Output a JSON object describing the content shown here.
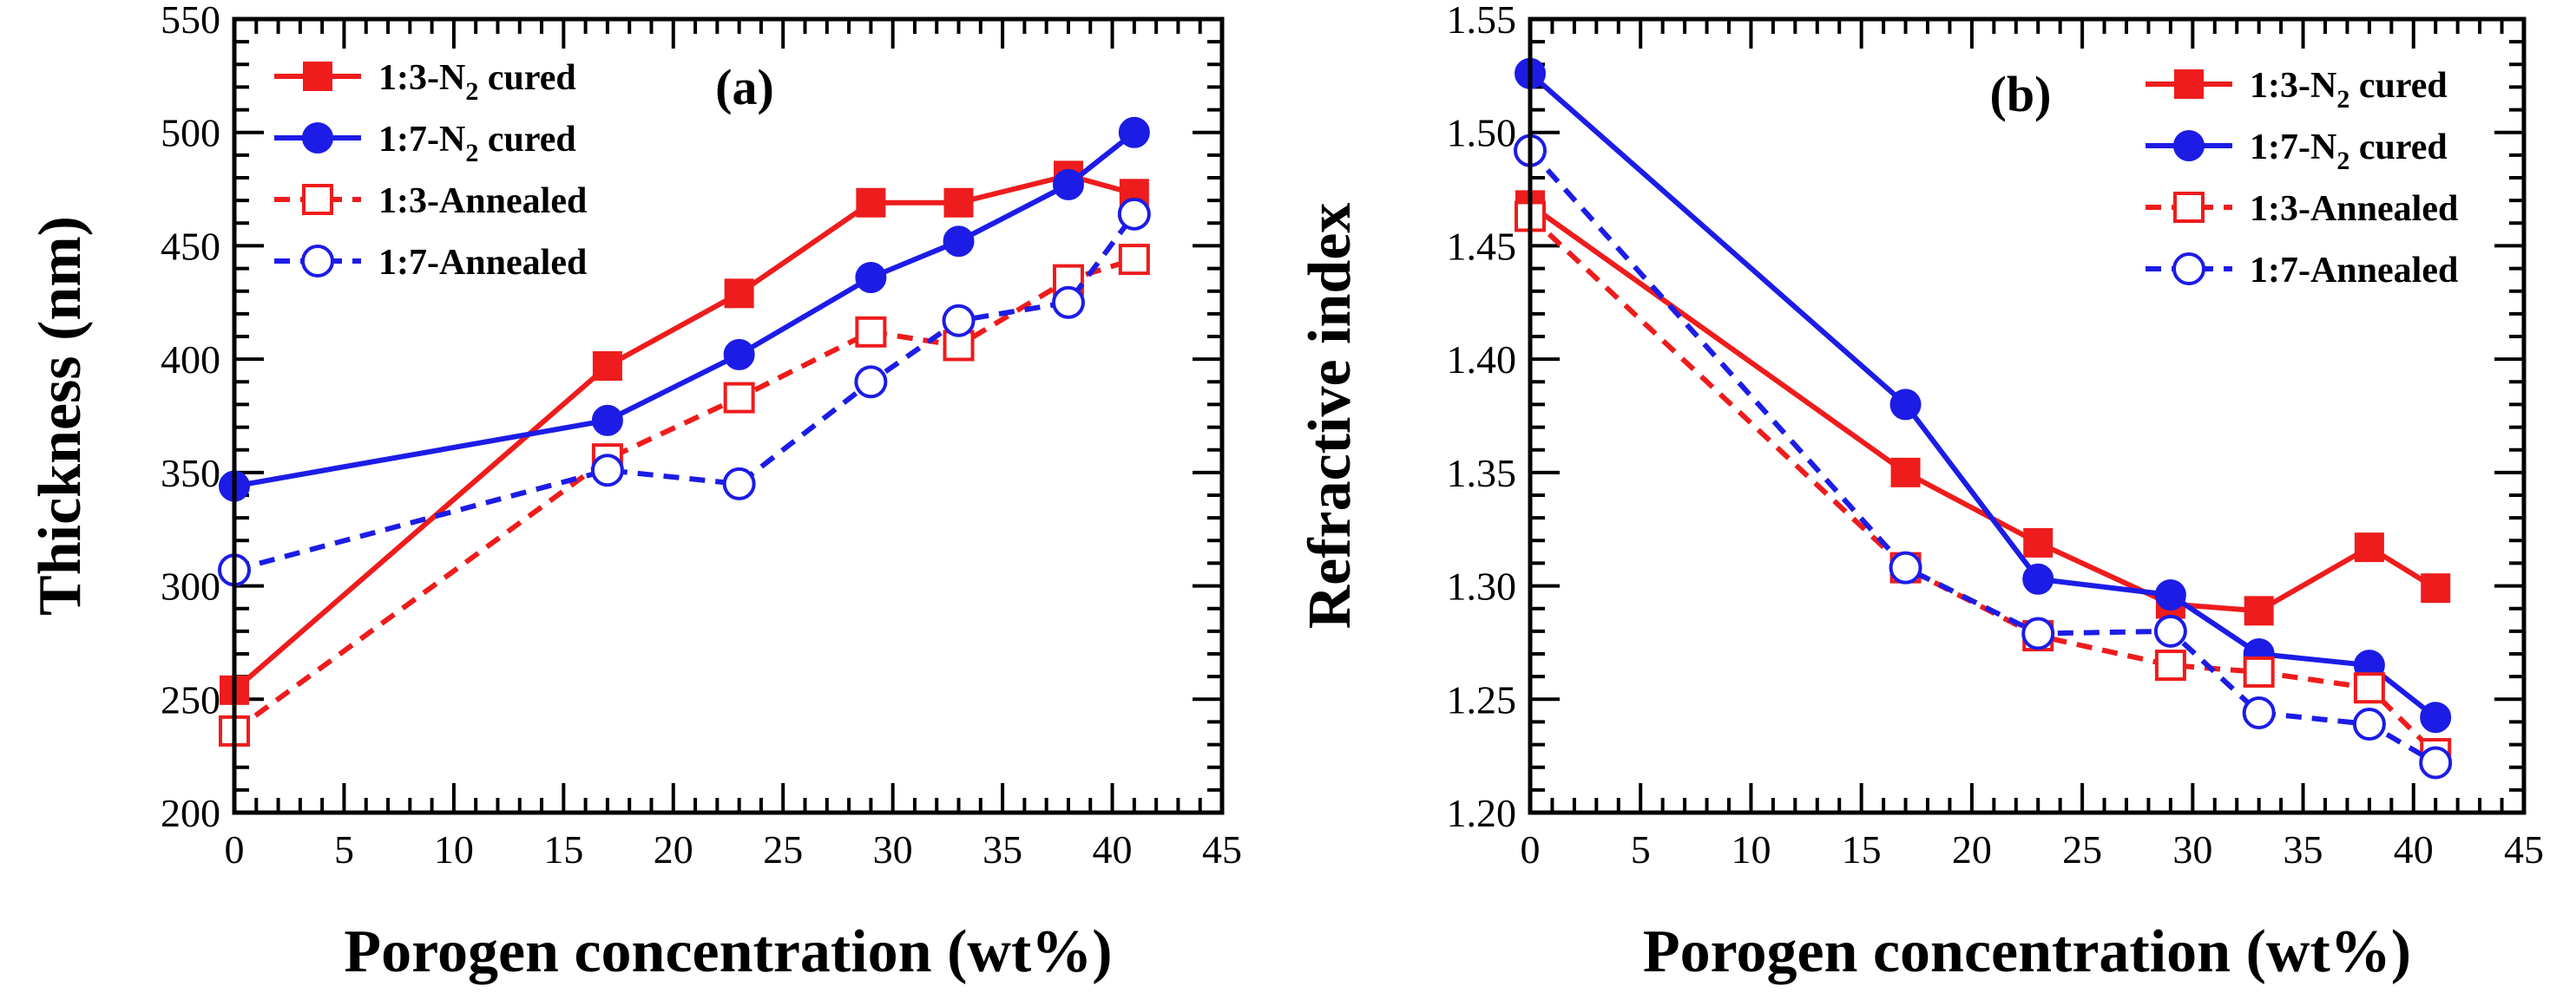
{
  "chart_data": [
    {
      "type": "line",
      "panel_label": "(a)",
      "xlabel": "Porogen concentration (wt%)",
      "ylabel": "Thickness (nm)",
      "xlim": [
        0,
        45
      ],
      "ylim": [
        200,
        550
      ],
      "xticks": [
        0,
        5,
        10,
        15,
        20,
        25,
        30,
        35,
        40,
        45
      ],
      "yticks": [
        200,
        250,
        300,
        350,
        400,
        450,
        500,
        550
      ],
      "grid": false,
      "legend_position": "top-left",
      "series": [
        {
          "name": "1:3-N2 cured",
          "label_main": "1:3-N",
          "label_sub": "2",
          "label_tail": " cured",
          "color": "#ee1c1c",
          "dash": "solid",
          "marker": "filled-square",
          "x": [
            0,
            17,
            23,
            29,
            33,
            38,
            41
          ],
          "y": [
            254,
            397,
            429,
            469,
            469,
            481,
            473
          ]
        },
        {
          "name": "1:7-N2 cured",
          "label_main": "1:7-N",
          "label_sub": "2",
          "label_tail": " cured",
          "color": "#1c1ce6",
          "dash": "solid",
          "marker": "filled-circle",
          "x": [
            0,
            17,
            23,
            29,
            33,
            38,
            41
          ],
          "y": [
            344,
            373,
            402,
            436,
            452,
            477,
            500
          ]
        },
        {
          "name": "1:3-Annealed",
          "label_main": "1:3-Annealed",
          "label_sub": "",
          "label_tail": "",
          "color": "#ee1c1c",
          "dash": "dashed",
          "marker": "open-square",
          "x": [
            0,
            17,
            23,
            29,
            33,
            38,
            41
          ],
          "y": [
            236,
            356,
            383,
            412,
            406,
            435,
            444
          ]
        },
        {
          "name": "1:7-Annealed",
          "label_main": "1:7-Annealed",
          "label_sub": "",
          "label_tail": "",
          "color": "#1c1ce6",
          "dash": "dashed",
          "marker": "open-circle",
          "x": [
            0,
            17,
            23,
            29,
            33,
            38,
            41
          ],
          "y": [
            307,
            351,
            345,
            390,
            417,
            425,
            464
          ]
        }
      ]
    },
    {
      "type": "line",
      "panel_label": "(b)",
      "xlabel": "Porogen concentration (wt%)",
      "ylabel": "Refractive index",
      "xlim": [
        0,
        45
      ],
      "ylim": [
        1.2,
        1.55
      ],
      "xticks": [
        0,
        5,
        10,
        15,
        20,
        25,
        30,
        35,
        40,
        45
      ],
      "yticks": [
        1.2,
        1.25,
        1.3,
        1.35,
        1.4,
        1.45,
        1.5,
        1.55
      ],
      "ytick_labels": [
        "1.20",
        "1.25",
        "1.30",
        "1.35",
        "1.40",
        "1.45",
        "1.50",
        "1.55"
      ],
      "grid": false,
      "legend_position": "top-right",
      "series": [
        {
          "name": "1:3-N2 cured",
          "label_main": "1:3-N",
          "label_sub": "2",
          "label_tail": " cured",
          "color": "#ee1c1c",
          "dash": "solid",
          "marker": "filled-square",
          "x": [
            0,
            17,
            23,
            29,
            33,
            38,
            41
          ],
          "y": [
            1.468,
            1.35,
            1.319,
            1.292,
            1.289,
            1.317,
            1.299
          ]
        },
        {
          "name": "1:7-N2 cured",
          "label_main": "1:7-N",
          "label_sub": "2",
          "label_tail": " cured",
          "color": "#1c1ce6",
          "dash": "solid",
          "marker": "filled-circle",
          "x": [
            0,
            17,
            23,
            29,
            33,
            38,
            41
          ],
          "y": [
            1.526,
            1.38,
            1.303,
            1.296,
            1.27,
            1.265,
            1.242
          ]
        },
        {
          "name": "1:3-Annealed",
          "label_main": "1:3-Annealed",
          "label_sub": "",
          "label_tail": "",
          "color": "#ee1c1c",
          "dash": "dashed",
          "marker": "open-square",
          "x": [
            0,
            17,
            23,
            29,
            33,
            38,
            41
          ],
          "y": [
            1.463,
            1.308,
            1.278,
            1.265,
            1.262,
            1.255,
            1.226
          ]
        },
        {
          "name": "1:7-Annealed",
          "label_main": "1:7-Annealed",
          "label_sub": "",
          "label_tail": "",
          "color": "#1c1ce6",
          "dash": "dashed",
          "marker": "open-circle",
          "x": [
            0,
            17,
            23,
            29,
            33,
            38,
            41
          ],
          "y": [
            1.492,
            1.308,
            1.279,
            1.28,
            1.244,
            1.239,
            1.222
          ]
        }
      ]
    }
  ]
}
